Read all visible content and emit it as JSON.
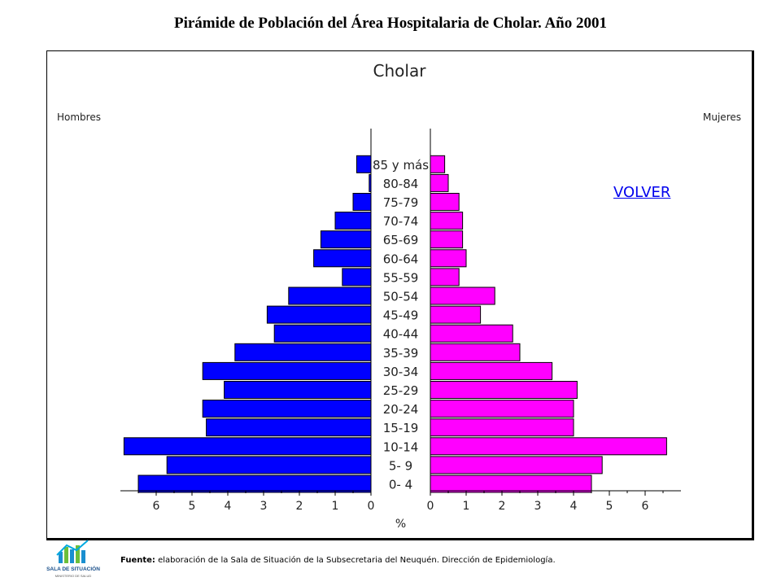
{
  "header": {
    "title": "Pirámide de Población del Área Hospitalaria de Cholar. Año 2001"
  },
  "chart_data": {
    "type": "bar",
    "orientation": "horizontal-pyramid",
    "title": "Cholar",
    "xlabel": "%",
    "categories": [
      "0- 4",
      "5- 9",
      "10-14",
      "15-19",
      "20-24",
      "25-29",
      "30-34",
      "35-39",
      "40-44",
      "45-49",
      "50-54",
      "55-59",
      "60-64",
      "65-69",
      "70-74",
      "75-79",
      "80-84",
      "85 y más"
    ],
    "series": [
      {
        "name": "Hombres",
        "color": "#0000ff",
        "values": [
          6.5,
          5.7,
          6.9,
          4.6,
          4.7,
          4.1,
          4.7,
          3.8,
          2.7,
          2.9,
          2.3,
          0.8,
          1.6,
          1.4,
          1.0,
          0.5,
          0.05,
          0.4
        ]
      },
      {
        "name": "Mujeres",
        "color": "#ff00ff",
        "values": [
          4.5,
          4.8,
          6.6,
          4.0,
          4.0,
          4.1,
          3.4,
          2.5,
          2.3,
          1.4,
          1.8,
          0.8,
          1.0,
          0.9,
          0.9,
          0.8,
          0.5,
          0.4
        ]
      }
    ],
    "xlim": [
      0,
      7
    ],
    "xticks": [
      0,
      1,
      2,
      3,
      4,
      5,
      6
    ],
    "xtick_labels": [
      "0",
      "1",
      "2",
      "3",
      "4",
      "5",
      "6"
    ],
    "grid": false
  },
  "nav": {
    "volver_label": "VOLVER"
  },
  "footer": {
    "source_label": "Fuente:",
    "source_text": " elaboración de la Sala de Situación de la Subsecretaria del Neuquén. Dirección de Epidemiología.",
    "logo_text": "SALA DE SITUACIÓN",
    "logo_subtext": "MINISTERIO DE SALUD"
  }
}
